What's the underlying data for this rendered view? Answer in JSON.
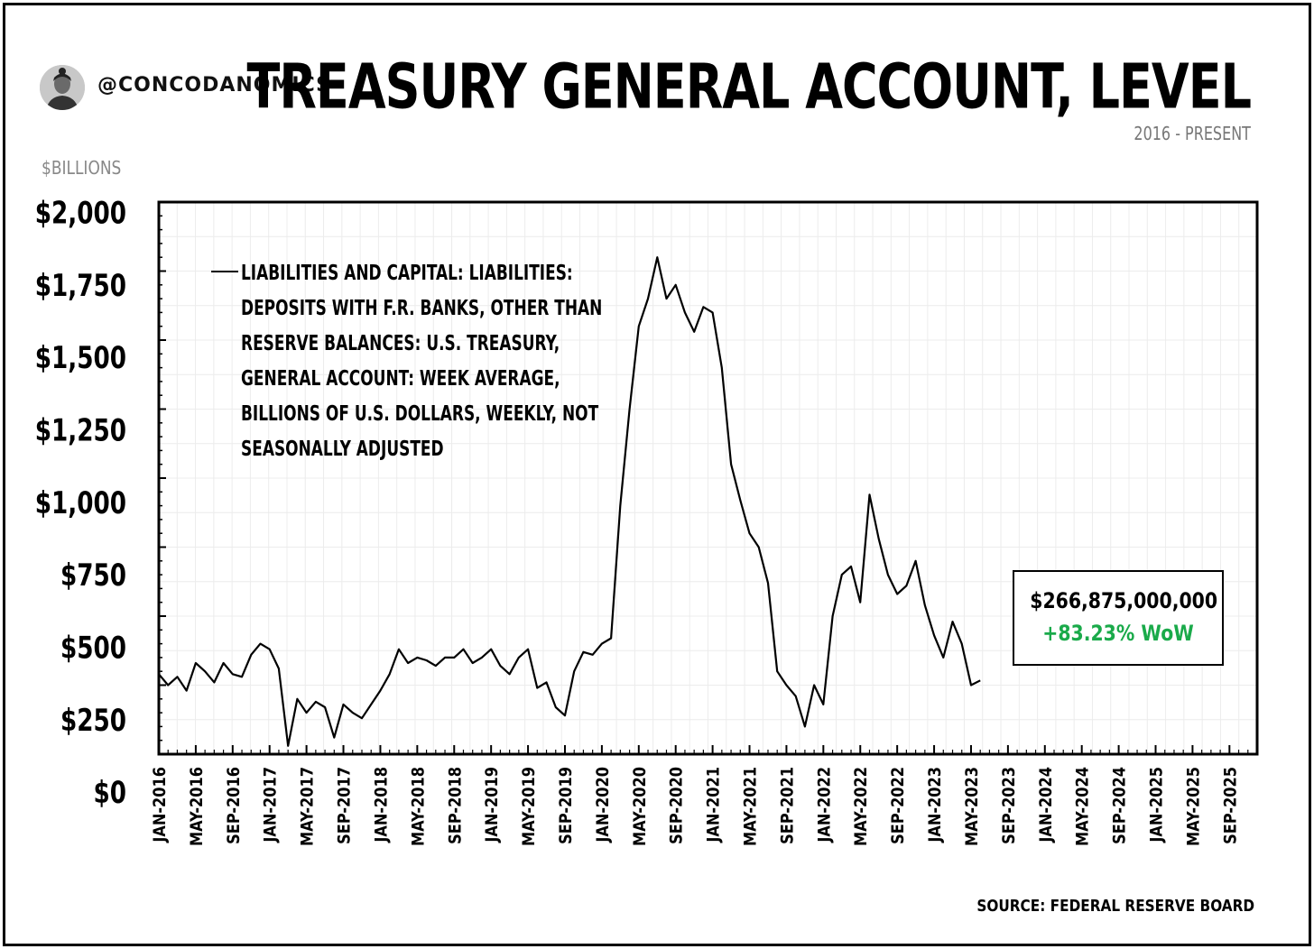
{
  "header": {
    "handle": "@CONCODANOMICS",
    "title": "TREASURY GENERAL ACCOUNT, LEVEL",
    "subtitle": "2016 - PRESENT",
    "avatar_icon": "person-portrait-icon"
  },
  "footer": {
    "source": "SOURCE: FEDERAL RESERVE BOARD"
  },
  "callout": {
    "value": "$266,875,000,000",
    "change": "+83.23% WoW",
    "change_color": "#1aaa4a"
  },
  "chart_data": {
    "type": "line",
    "title": "TREASURY GENERAL ACCOUNT, LEVEL",
    "subtitle": "2016 - PRESENT",
    "ylabel": "$BILLIONS",
    "ylim": [
      0,
      2000
    ],
    "xlim": [
      "2016-01",
      "2025-12"
    ],
    "grid": true,
    "legend_placement": "top-left",
    "y_ticks": [
      0,
      250,
      500,
      750,
      1000,
      1250,
      1500,
      1750,
      2000
    ],
    "y_tick_labels": [
      "$0",
      "$250",
      "$500",
      "$750",
      "$1,000",
      "$1,250",
      "$1,500",
      "$1,750",
      "$2,000"
    ],
    "x_tick_labels": [
      "JAN-2016",
      "MAY-2016",
      "SEP-2016",
      "JAN-2017",
      "MAY-2017",
      "SEP-2017",
      "JAN-2018",
      "MAY-2018",
      "SEP-2018",
      "JAN-2019",
      "MAY-2019",
      "SEP-2019",
      "JAN-2020",
      "MAY-2020",
      "SEP-2020",
      "JAN-2021",
      "MAY-2021",
      "SEP-2021",
      "JAN-2022",
      "MAY-2022",
      "SEP-2022",
      "JAN-2023",
      "MAY-2023",
      "SEP-2023",
      "JAN-2024",
      "MAY-2024",
      "SEP-2024",
      "JAN-2025",
      "MAY-2025",
      "SEP-2025"
    ],
    "series": [
      {
        "name": "LIABILITIES AND CAPITAL: LIABILITIES: DEPOSITS WITH F.R. BANKS, OTHER THAN RESERVE BALANCES: U.S. TREASURY, GENERAL ACCOUNT: WEEK AVERAGE, BILLIONS OF U.S. DOLLARS, WEEKLY, NOT SEASONALLY ADJUSTED",
        "color": "#000000",
        "x": [
          "2016-01",
          "2016-02",
          "2016-03",
          "2016-04",
          "2016-05",
          "2016-06",
          "2016-07",
          "2016-08",
          "2016-09",
          "2016-10",
          "2016-11",
          "2016-12",
          "2017-01",
          "2017-02",
          "2017-03",
          "2017-04",
          "2017-05",
          "2017-06",
          "2017-07",
          "2017-08",
          "2017-09",
          "2017-10",
          "2017-11",
          "2017-12",
          "2018-01",
          "2018-02",
          "2018-03",
          "2018-04",
          "2018-05",
          "2018-06",
          "2018-07",
          "2018-08",
          "2018-09",
          "2018-10",
          "2018-11",
          "2018-12",
          "2019-01",
          "2019-02",
          "2019-03",
          "2019-04",
          "2019-05",
          "2019-06",
          "2019-07",
          "2019-08",
          "2019-09",
          "2019-10",
          "2019-11",
          "2019-12",
          "2020-01",
          "2020-02",
          "2020-03",
          "2020-04",
          "2020-05",
          "2020-06",
          "2020-07",
          "2020-08",
          "2020-09",
          "2020-10",
          "2020-11",
          "2020-12",
          "2021-01",
          "2021-02",
          "2021-03",
          "2021-04",
          "2021-05",
          "2021-06",
          "2021-07",
          "2021-08",
          "2021-09",
          "2021-10",
          "2021-11",
          "2021-12",
          "2022-01",
          "2022-02",
          "2022-03",
          "2022-04",
          "2022-05",
          "2022-06",
          "2022-07",
          "2022-08",
          "2022-09",
          "2022-10",
          "2022-11",
          "2022-12",
          "2023-01",
          "2023-02",
          "2023-03",
          "2023-04",
          "2023-05",
          "2023-06"
        ],
        "y": [
          290,
          250,
          280,
          230,
          330,
          300,
          260,
          330,
          290,
          280,
          360,
          400,
          380,
          310,
          30,
          200,
          150,
          190,
          170,
          60,
          180,
          150,
          130,
          180,
          230,
          290,
          380,
          330,
          350,
          340,
          320,
          350,
          350,
          380,
          330,
          350,
          380,
          320,
          290,
          350,
          380,
          240,
          260,
          170,
          140,
          300,
          370,
          360,
          400,
          420,
          900,
          1250,
          1550,
          1650,
          1800,
          1650,
          1700,
          1600,
          1530,
          1620,
          1600,
          1400,
          1050,
          920,
          800,
          750,
          620,
          300,
          250,
          210,
          100,
          250,
          180,
          500,
          650,
          680,
          550,
          940,
          780,
          650,
          580,
          610,
          700,
          540,
          430,
          350,
          480,
          400,
          250,
          267
        ]
      }
    ]
  }
}
